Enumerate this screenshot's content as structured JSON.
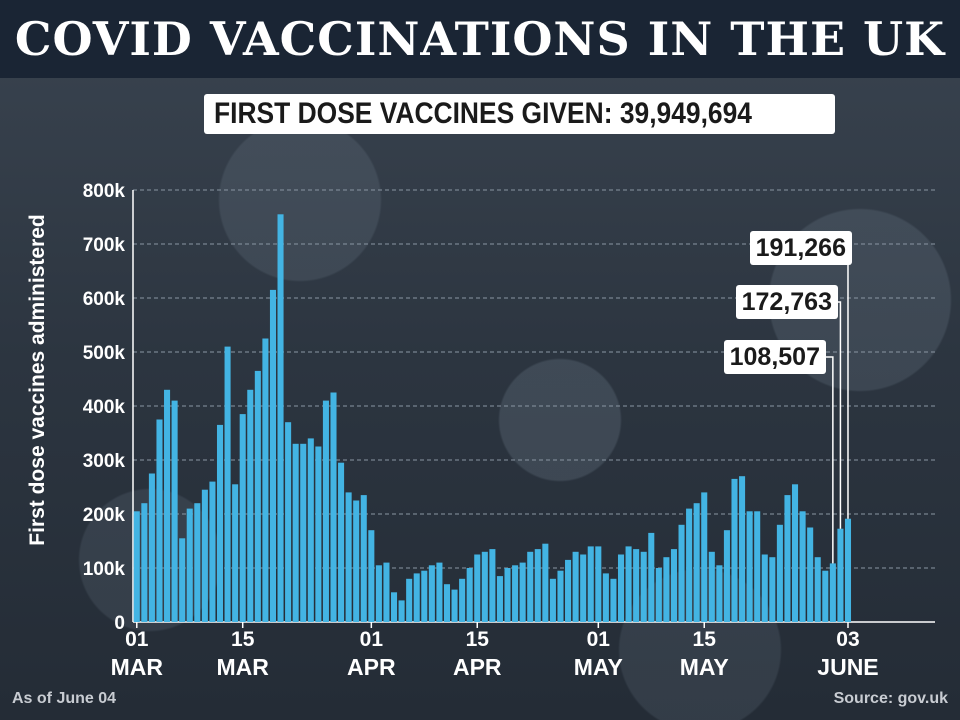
{
  "header": {
    "title": "COVID VACCINATIONS IN THE UK",
    "subtitle": "FIRST DOSE VACCINES GIVEN: 39,949,694"
  },
  "footer": {
    "as_of": "As of June 04",
    "source": "Source: gov.uk"
  },
  "colors": {
    "bar": "#43b4e3",
    "gridline": "#8a96a3",
    "text": "#ffffff"
  },
  "chart_data": {
    "type": "bar",
    "title": "COVID VACCINATIONS IN THE UK",
    "subtitle": "FIRST DOSE VACCINES GIVEN: 39,949,694",
    "ylabel": "First dose vaccines administered",
    "xlabel": "",
    "ylim": [
      0,
      800000
    ],
    "yticks": [
      0,
      100000,
      200000,
      300000,
      400000,
      500000,
      600000,
      700000,
      800000
    ],
    "ytick_labels": [
      "0",
      "100k",
      "200k",
      "300k",
      "400k",
      "500k",
      "600k",
      "700k",
      "800k"
    ],
    "grid": true,
    "x_start": "2021-03-01",
    "x_end": "2021-06-15",
    "xtick_labels": [
      {
        "date": "2021-03-01",
        "top": "01",
        "bottom": "MAR"
      },
      {
        "date": "2021-03-15",
        "top": "15",
        "bottom": "MAR"
      },
      {
        "date": "2021-04-01",
        "top": "01",
        "bottom": "APR"
      },
      {
        "date": "2021-04-15",
        "top": "15",
        "bottom": "APR"
      },
      {
        "date": "2021-05-01",
        "top": "01",
        "bottom": "MAY"
      },
      {
        "date": "2021-05-15",
        "top": "15",
        "bottom": "MAY"
      },
      {
        "date": "2021-06-03",
        "top": "03",
        "bottom": "JUNE"
      }
    ],
    "series": [
      {
        "name": "",
        "x": [
          "2021-03-01",
          "2021-03-02",
          "2021-03-03",
          "2021-03-04",
          "2021-03-05",
          "2021-03-06",
          "2021-03-07",
          "2021-03-08",
          "2021-03-09",
          "2021-03-10",
          "2021-03-11",
          "2021-03-12",
          "2021-03-13",
          "2021-03-14",
          "2021-03-15",
          "2021-03-16",
          "2021-03-17",
          "2021-03-18",
          "2021-03-19",
          "2021-03-20",
          "2021-03-21",
          "2021-03-22",
          "2021-03-23",
          "2021-03-24",
          "2021-03-25",
          "2021-03-26",
          "2021-03-27",
          "2021-03-28",
          "2021-03-29",
          "2021-03-30",
          "2021-03-31",
          "2021-04-01",
          "2021-04-02",
          "2021-04-03",
          "2021-04-04",
          "2021-04-05",
          "2021-04-06",
          "2021-04-07",
          "2021-04-08",
          "2021-04-09",
          "2021-04-10",
          "2021-04-11",
          "2021-04-12",
          "2021-04-13",
          "2021-04-14",
          "2021-04-15",
          "2021-04-16",
          "2021-04-17",
          "2021-04-18",
          "2021-04-19",
          "2021-04-20",
          "2021-04-21",
          "2021-04-22",
          "2021-04-23",
          "2021-04-24",
          "2021-04-25",
          "2021-04-26",
          "2021-04-27",
          "2021-04-28",
          "2021-04-29",
          "2021-04-30",
          "2021-05-01",
          "2021-05-02",
          "2021-05-03",
          "2021-05-04",
          "2021-05-05",
          "2021-05-06",
          "2021-05-07",
          "2021-05-08",
          "2021-05-09",
          "2021-05-10",
          "2021-05-11",
          "2021-05-12",
          "2021-05-13",
          "2021-05-14",
          "2021-05-15",
          "2021-05-16",
          "2021-05-17",
          "2021-05-18",
          "2021-05-19",
          "2021-05-20",
          "2021-05-21",
          "2021-05-22",
          "2021-05-23",
          "2021-05-24",
          "2021-05-25",
          "2021-05-26",
          "2021-05-27",
          "2021-05-28",
          "2021-05-29",
          "2021-05-30",
          "2021-05-31",
          "2021-06-01",
          "2021-06-02",
          "2021-06-03"
        ],
        "values": [
          205000,
          220000,
          275000,
          375000,
          430000,
          410000,
          155000,
          210000,
          220000,
          245000,
          260000,
          365000,
          510000,
          255000,
          385000,
          430000,
          465000,
          525000,
          615000,
          755000,
          370000,
          330000,
          330000,
          340000,
          325000,
          410000,
          425000,
          295000,
          240000,
          225000,
          235000,
          170000,
          105000,
          110000,
          55000,
          40000,
          80000,
          90000,
          95000,
          105000,
          110000,
          70000,
          60000,
          80000,
          100000,
          125000,
          130000,
          135000,
          85000,
          100000,
          105000,
          110000,
          130000,
          135000,
          145000,
          80000,
          95000,
          115000,
          130000,
          125000,
          140000,
          140000,
          90000,
          80000,
          125000,
          140000,
          135000,
          130000,
          165000,
          100000,
          120000,
          135000,
          180000,
          210000,
          220000,
          240000,
          130000,
          105000,
          170000,
          265000,
          270000,
          205000,
          205000,
          125000,
          120000,
          180000,
          235000,
          255000,
          205000,
          175000,
          120000,
          95000,
          108507,
          172763,
          191266
        ]
      }
    ],
    "annotations": [
      {
        "date": "2021-06-01",
        "text": "108,507"
      },
      {
        "date": "2021-06-02",
        "text": "172,763"
      },
      {
        "date": "2021-06-03",
        "text": "191,266"
      }
    ]
  }
}
